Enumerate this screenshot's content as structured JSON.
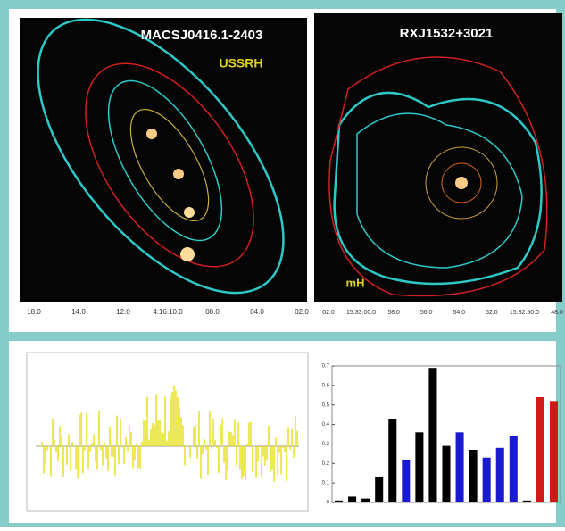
{
  "top": {
    "left_panel": {
      "title": "MACSJ0416.1-2403",
      "label": "USSRH",
      "x_ticks": [
        "18.0",
        "14.0",
        "12.0",
        "4:16:10.0",
        "08.0",
        "04.0",
        "02.0"
      ]
    },
    "right_panel": {
      "title": "RXJ1532+3021",
      "label": "mH",
      "x_ticks": [
        "02.0",
        "15:33:00.0",
        "58.0",
        "56.0",
        "54.0",
        "52.0",
        "15:32:50.0",
        "48.0"
      ]
    }
  },
  "chart_data": {
    "type": "bar",
    "categories": [
      null,
      null,
      null,
      null,
      null,
      null,
      null,
      null,
      null,
      null,
      null,
      null,
      null,
      null,
      null,
      null,
      null
    ],
    "values": [
      0.01,
      0.03,
      0.02,
      0.13,
      0.43,
      0.22,
      0.36,
      0.69,
      0.29,
      0.36,
      0.27,
      0.23,
      0.28,
      0.34,
      0.01,
      0.54,
      0.52
    ],
    "colors": [
      "#000000",
      "#000000",
      "#000000",
      "#000000",
      "#000000",
      "#1a1ad0",
      "#000000",
      "#000000",
      "#000000",
      "#1a1ad0",
      "#000000",
      "#1a1ad0",
      "#1a1ad0",
      "#1a1ad0",
      "#000000",
      "#d01a1a",
      "#d01a1a"
    ],
    "ylim": [
      0,
      0.7
    ],
    "yticks": [
      0,
      0.1,
      0.2,
      0.3,
      0.4,
      0.5,
      0.6,
      0.7
    ]
  }
}
